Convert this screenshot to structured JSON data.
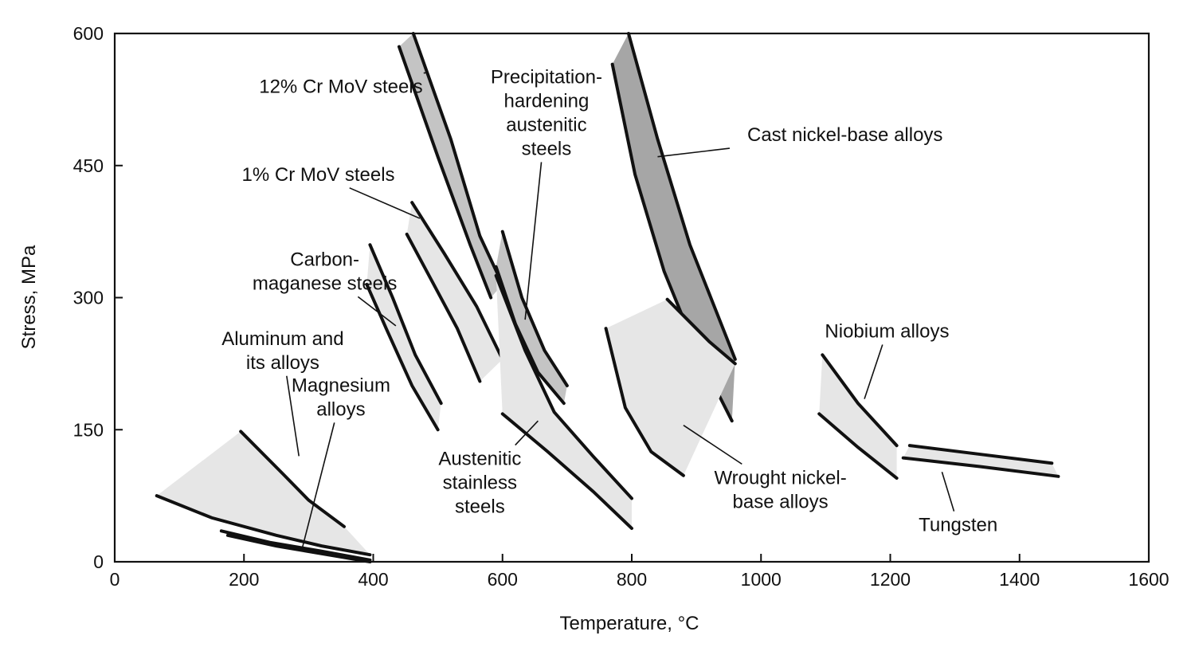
{
  "chart_data": {
    "type": "area",
    "title": "",
    "xlabel": "Temperature, °C",
    "ylabel": "Stress, MPa",
    "xlim": [
      0,
      1600
    ],
    "ylim": [
      0,
      600
    ],
    "xticks": [
      0,
      200,
      400,
      600,
      800,
      1000,
      1200,
      1400,
      1600
    ],
    "yticks": [
      0,
      150,
      300,
      450,
      600
    ],
    "grid": false,
    "series": [
      {
        "name": "Aluminum and its alloys",
        "label_lines": [
          "Aluminum and",
          "its alloys"
        ],
        "shade": "light",
        "upper": [
          [
            195,
            148
          ],
          [
            260,
            100
          ],
          [
            300,
            70
          ],
          [
            355,
            40
          ]
        ],
        "lower": [
          [
            65,
            75
          ],
          [
            150,
            50
          ],
          [
            250,
            30
          ],
          [
            320,
            18
          ],
          [
            395,
            8
          ]
        ],
        "label_anchor": [
          260,
          240
        ],
        "leader_target": [
          285,
          120
        ]
      },
      {
        "name": "Magnesium alloys",
        "label_lines": [
          "Magnesium",
          "alloys"
        ],
        "shade": "light",
        "upper": [
          [
            165,
            35
          ],
          [
            240,
            22
          ],
          [
            320,
            12
          ],
          [
            395,
            2
          ]
        ],
        "lower": [
          [
            175,
            30
          ],
          [
            250,
            18
          ],
          [
            330,
            8
          ],
          [
            395,
            0
          ]
        ],
        "label_anchor": [
          350,
          187
        ],
        "leader_target": [
          290,
          15
        ]
      },
      {
        "name": "Carbon-maganese steels",
        "label_lines": [
          "Carbon-",
          "maganese steels"
        ],
        "shade": "light",
        "upper": [
          [
            395,
            360
          ],
          [
            430,
            300
          ],
          [
            465,
            235
          ],
          [
            505,
            180
          ]
        ],
        "lower": [
          [
            390,
            315
          ],
          [
            420,
            265
          ],
          [
            460,
            200
          ],
          [
            500,
            150
          ]
        ],
        "label_anchor": [
          325,
          330
        ],
        "leader_target": [
          435,
          268
        ]
      },
      {
        "name": "1% Cr MoV steels",
        "label_lines": [
          "1% Cr MoV steels"
        ],
        "shade": "light",
        "upper": [
          [
            460,
            408
          ],
          [
            510,
            350
          ],
          [
            560,
            290
          ],
          [
            600,
            230
          ]
        ],
        "lower": [
          [
            452,
            372
          ],
          [
            490,
            320
          ],
          [
            530,
            265
          ],
          [
            565,
            205
          ]
        ],
        "label_anchor": [
          315,
          440
        ],
        "leader_target": [
          472,
          390
        ]
      },
      {
        "name": "12% Cr MoV steels",
        "label_lines": [
          "12% Cr MoV steels"
        ],
        "shade": "medium",
        "upper": [
          [
            462,
            600
          ],
          [
            520,
            480
          ],
          [
            565,
            370
          ],
          [
            600,
            315
          ]
        ],
        "lower": [
          [
            440,
            585
          ],
          [
            500,
            460
          ],
          [
            550,
            360
          ],
          [
            582,
            300
          ]
        ],
        "label_anchor": [
          350,
          540
        ],
        "leader_target": [
          478,
          555
        ]
      },
      {
        "name": "Precipitation-hardening austenitic steels",
        "label_lines": [
          "Precipitation-",
          "hardening",
          "austenitic",
          "steels"
        ],
        "shade": "medium",
        "upper": [
          [
            600,
            375
          ],
          [
            630,
            300
          ],
          [
            665,
            240
          ],
          [
            700,
            200
          ]
        ],
        "lower": [
          [
            590,
            335
          ],
          [
            620,
            270
          ],
          [
            655,
            215
          ],
          [
            695,
            180
          ]
        ],
        "label_anchor": [
          668,
          510
        ],
        "leader_target": [
          635,
          275
        ]
      },
      {
        "name": "Austenitic stainless steels",
        "label_lines": [
          "Austenitic",
          "stainless",
          "steels"
        ],
        "shade": "light",
        "upper": [
          [
            590,
            325
          ],
          [
            635,
            240
          ],
          [
            680,
            170
          ],
          [
            740,
            120
          ],
          [
            800,
            72
          ]
        ],
        "lower": [
          [
            600,
            168
          ],
          [
            670,
            125
          ],
          [
            740,
            80
          ],
          [
            800,
            38
          ]
        ],
        "label_anchor": [
          565,
          90
        ],
        "leader_target": [
          655,
          160
        ]
      },
      {
        "name": "Cast nickel-base alloys",
        "label_lines": [
          "Cast nickel-base alloys"
        ],
        "shade": "dark",
        "upper": [
          [
            795,
            600
          ],
          [
            840,
            480
          ],
          [
            890,
            360
          ],
          [
            960,
            230
          ]
        ],
        "lower": [
          [
            770,
            565
          ],
          [
            805,
            440
          ],
          [
            850,
            330
          ],
          [
            900,
            240
          ],
          [
            955,
            160
          ]
        ],
        "label_anchor": [
          1130,
          485
        ],
        "leader_target": [
          840,
          460
        ]
      },
      {
        "name": "Wrought nickel-base alloys",
        "label_lines": [
          "Wrought nickel-",
          "base alloys"
        ],
        "shade": "light",
        "upper": [
          [
            855,
            298
          ],
          [
            920,
            250
          ],
          [
            960,
            225
          ]
        ],
        "lower": [
          [
            760,
            265
          ],
          [
            790,
            175
          ],
          [
            830,
            125
          ],
          [
            880,
            98
          ]
        ],
        "label_anchor": [
          1030,
          82
        ],
        "leader_target": [
          880,
          155
        ]
      },
      {
        "name": "Niobium alloys",
        "label_lines": [
          "Niobium alloys"
        ],
        "shade": "light",
        "upper": [
          [
            1095,
            235
          ],
          [
            1150,
            180
          ],
          [
            1210,
            132
          ]
        ],
        "lower": [
          [
            1090,
            168
          ],
          [
            1150,
            130
          ],
          [
            1210,
            95
          ]
        ],
        "label_anchor": [
          1195,
          262
        ],
        "leader_target": [
          1160,
          185
        ]
      },
      {
        "name": "Tungsten",
        "label_lines": [
          "Tungsten"
        ],
        "shade": "light",
        "upper": [
          [
            1230,
            132
          ],
          [
            1340,
            122
          ],
          [
            1450,
            112
          ]
        ],
        "lower": [
          [
            1220,
            118
          ],
          [
            1340,
            108
          ],
          [
            1460,
            97
          ]
        ],
        "label_anchor": [
          1305,
          42
        ],
        "leader_target": [
          1280,
          102
        ]
      }
    ]
  }
}
